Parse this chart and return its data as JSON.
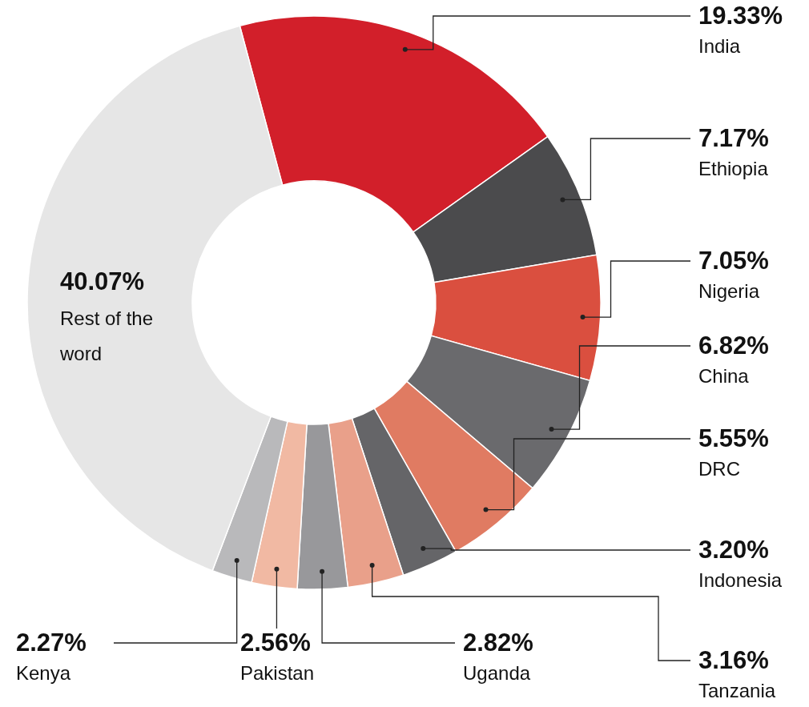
{
  "chart_data": {
    "type": "donut",
    "categories": [
      "India",
      "Ethiopia",
      "Nigeria",
      "China",
      "DRC",
      "Indonesia",
      "Tanzania",
      "Uganda",
      "Pakistan",
      "Kenya",
      "Rest of the word"
    ],
    "values": [
      19.33,
      7.17,
      7.05,
      6.82,
      5.55,
      3.2,
      3.16,
      2.82,
      2.56,
      2.27,
      40.07
    ],
    "value_labels": [
      "19.33%",
      "7.17%",
      "7.05%",
      "6.82%",
      "5.55%",
      "3.20%",
      "3.16%",
      "2.82%",
      "2.56%",
      "2.27%",
      "40.07%"
    ],
    "colors": [
      "#d21f2a",
      "#4b4b4d",
      "#da4f3f",
      "#6a6a6d",
      "#e07b62",
      "#656568",
      "#e9a08a",
      "#98989b",
      "#f1b9a3",
      "#b9b9bb",
      "#e6e6e6"
    ]
  }
}
